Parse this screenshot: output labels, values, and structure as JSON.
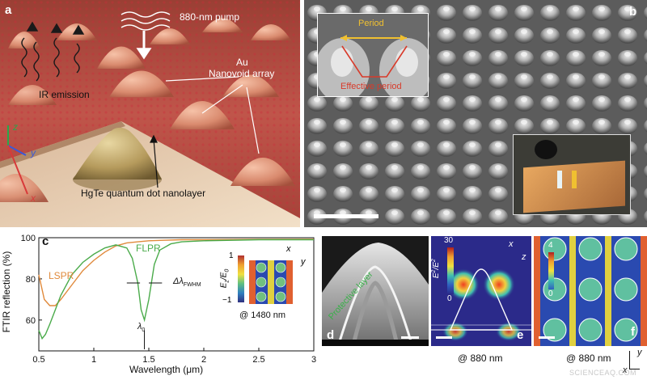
{
  "panel_a": {
    "label": "a",
    "pump": "880-nm pump",
    "au1": "Au",
    "au2": "Nanovoid array",
    "ir": "IR emission",
    "hgte": "HgTe quantum dot nanolayer",
    "ax_x": "x",
    "ax_y": "y",
    "ax_z": "z"
  },
  "panel_b": {
    "label": "b",
    "period": "Period",
    "effective_period": "Effective period"
  },
  "chart_data": {
    "type": "line",
    "label": "c",
    "xlabel": "Wavelength (μm)",
    "ylabel": "FTIR reflection (%)",
    "xlim": [
      0.5,
      3
    ],
    "ylim": [
      45,
      100
    ],
    "xticks": [
      "0.5",
      "1",
      "1.5",
      "2",
      "2.5",
      "3"
    ],
    "yticks": [
      "100",
      "80",
      "60"
    ],
    "series": [
      {
        "name": "LSPR",
        "color": "#e08a3c",
        "x": [
          0.5,
          0.55,
          0.6,
          0.65,
          0.7,
          0.8,
          0.9,
          1.0,
          1.1,
          1.2,
          1.3,
          1.4,
          1.5,
          1.6,
          1.8,
          2.0,
          2.5,
          3.0
        ],
        "y": [
          82,
          70,
          67,
          67,
          70,
          77,
          84,
          89,
          93,
          96,
          97.5,
          98,
          98.5,
          98.7,
          99,
          99,
          99.2,
          99.3
        ]
      },
      {
        "name": "FLPR",
        "color": "#4bab4b",
        "x": [
          0.5,
          0.53,
          0.56,
          0.6,
          0.65,
          0.7,
          0.8,
          0.9,
          1.0,
          1.1,
          1.2,
          1.3,
          1.35,
          1.4,
          1.43,
          1.46,
          1.5,
          1.55,
          1.6,
          1.7,
          1.8,
          2.0,
          2.5,
          3.0
        ],
        "y": [
          55,
          51,
          53,
          58,
          65,
          72,
          82,
          88,
          92,
          95,
          96.5,
          95,
          90,
          78,
          65,
          60,
          70,
          87,
          94,
          97,
          98,
          98.5,
          99,
          99
        ]
      }
    ],
    "annotations": {
      "fwhm": "Δλ",
      "fwhm_sub": "FWHM",
      "lambda0": "λ",
      "lambda0_sub": "0"
    },
    "inset": {
      "cb_label": "E",
      "cb_label_sub": "z",
      "cb_label_den": "/E",
      "cb_label_den_sub": "0",
      "cb_max": "1",
      "cb_min": "−1",
      "axis_x": "x",
      "axis_y": "y",
      "caption": "@ 1480 nm"
    }
  },
  "panel_d": {
    "label": "d",
    "text": "Protective layer"
  },
  "panel_e": {
    "label": "e",
    "cb_max": "30",
    "cb_min": "0",
    "cb_label": "E",
    "cb_label_sup": "2",
    "cb_label_den": "/E",
    "cb_label_den_sub": "0",
    "cb_label_den_sup": "2",
    "axis_x": "x",
    "axis_z": "z",
    "caption": "@ 880 nm"
  },
  "panel_f": {
    "label": "f",
    "cb_max": "4",
    "cb_min": "0",
    "axis_x": "x",
    "axis_y": "y",
    "caption": "@ 880 nm"
  },
  "watermark": "SCIENCEAQ.COM"
}
